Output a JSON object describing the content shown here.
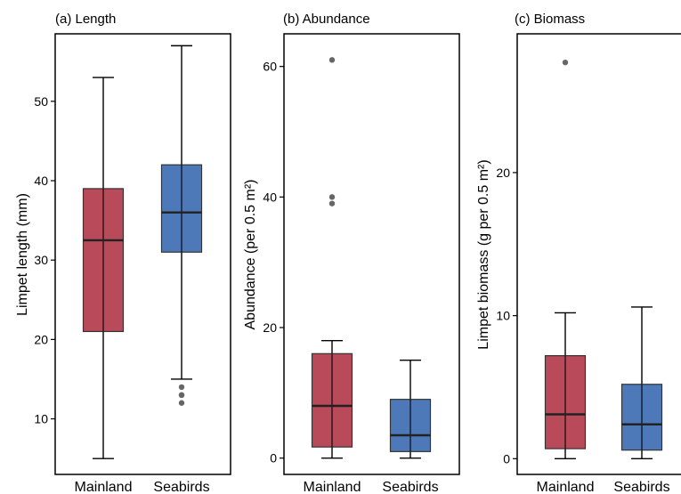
{
  "chart_data": [
    {
      "type": "box",
      "title": "(a) Length",
      "xlabel": "",
      "ylabel": "Limpet length (mm)",
      "ylim": [
        3,
        58.5
      ],
      "yticks": [
        10,
        20,
        30,
        40,
        50
      ],
      "grid": false,
      "categories": [
        "Mainland",
        "Seabirds"
      ],
      "colors": [
        "#b84a5a",
        "#4e79b8"
      ],
      "boxes": [
        {
          "min": 5,
          "q1": 21,
          "median": 32.5,
          "q3": 39,
          "max": 53,
          "outliers": []
        },
        {
          "min": 15,
          "q1": 31,
          "median": 36,
          "q3": 42,
          "max": 57,
          "outliers": [
            12,
            13,
            13,
            14
          ]
        }
      ]
    },
    {
      "type": "box",
      "title": "(b) Abundance",
      "xlabel": "",
      "ylabel": "Abundance (per 0.5 m²)",
      "ylim": [
        -2.5,
        65
      ],
      "yticks": [
        0,
        20,
        40,
        60
      ],
      "grid": false,
      "categories": [
        "Mainland",
        "Seabirds"
      ],
      "colors": [
        "#b84a5a",
        "#4e79b8"
      ],
      "boxes": [
        {
          "min": 0,
          "q1": 1.7,
          "median": 8,
          "q3": 16,
          "max": 18,
          "outliers": [
            39,
            40,
            61
          ]
        },
        {
          "min": 0,
          "q1": 1,
          "median": 3.5,
          "q3": 9,
          "max": 15,
          "outliers": []
        }
      ]
    },
    {
      "type": "box",
      "title": "(c) Biomass",
      "xlabel": "",
      "ylabel": "Limpet biomass (g per 0.5 m²)",
      "ylim": [
        -1.1,
        29.7
      ],
      "yticks": [
        0,
        10,
        20
      ],
      "grid": false,
      "categories": [
        "Mainland",
        "Seabirds"
      ],
      "colors": [
        "#b84a5a",
        "#4e79b8"
      ],
      "boxes": [
        {
          "min": 0,
          "q1": 0.7,
          "median": 3.1,
          "q3": 7.2,
          "max": 10.2,
          "outliers": [
            27.7
          ]
        },
        {
          "min": 0,
          "q1": 0.6,
          "median": 2.4,
          "q3": 5.2,
          "max": 10.6,
          "outliers": []
        }
      ]
    }
  ]
}
